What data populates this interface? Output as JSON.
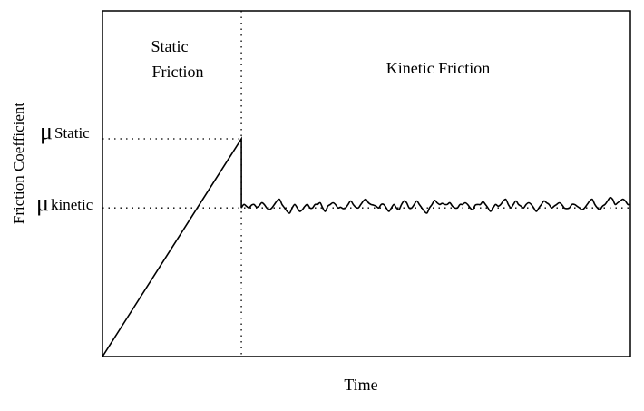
{
  "chart_data": {
    "type": "line",
    "title": "",
    "xlabel": "Time",
    "ylabel": "Friction Coefficient",
    "regions": [
      {
        "label_line1": "Static",
        "label_line2": "Friction"
      },
      {
        "label": "Kinetic Friction"
      }
    ],
    "levels": {
      "static": {
        "symbol": "μ",
        "subscript": "Static",
        "value": 0.63
      },
      "kinetic": {
        "symbol": "μ",
        "subscript": "kinetic",
        "value": 0.43
      }
    },
    "x_range": [
      0,
      1
    ],
    "y_range": [
      0,
      1
    ],
    "transition_x": 0.263,
    "series": [
      {
        "style": "solid",
        "x": [
          0,
          0.263,
          0.263,
          0.263
        ],
        "y": [
          0,
          0.63,
          0.63,
          0.43
        ]
      }
    ],
    "kinetic_fluctuation": {
      "x_start": 0.263,
      "x_end": 1.0,
      "y": [
        0.43,
        0.44,
        0.435,
        0.43,
        0.438,
        0.44,
        0.432,
        0.436,
        0.445,
        0.44,
        0.43,
        0.425,
        0.43,
        0.44,
        0.45,
        0.455,
        0.44,
        0.43,
        0.42,
        0.415,
        0.43,
        0.44,
        0.43,
        0.42,
        0.425,
        0.435,
        0.44,
        0.43,
        0.43,
        0.44,
        0.44,
        0.445,
        0.43,
        0.42,
        0.435,
        0.44,
        0.445,
        0.44,
        0.43,
        0.432,
        0.428,
        0.43,
        0.44,
        0.45,
        0.44,
        0.432,
        0.43,
        0.44,
        0.45,
        0.455,
        0.445,
        0.44,
        0.438,
        0.435,
        0.43,
        0.44,
        0.44,
        0.43,
        0.42,
        0.43,
        0.44,
        0.43,
        0.425,
        0.44,
        0.45,
        0.445,
        0.43,
        0.43,
        0.44,
        0.45,
        0.44,
        0.43,
        0.42,
        0.415,
        0.43,
        0.44,
        0.452,
        0.445,
        0.44,
        0.443,
        0.44,
        0.44,
        0.445,
        0.435,
        0.43,
        0.43,
        0.44,
        0.44,
        0.445,
        0.44,
        0.43,
        0.425,
        0.438,
        0.44,
        0.44,
        0.448,
        0.44,
        0.43,
        0.42,
        0.43,
        0.44,
        0.435,
        0.44,
        0.45,
        0.455,
        0.44,
        0.43,
        0.44,
        0.45,
        0.44,
        0.435,
        0.43,
        0.44,
        0.445,
        0.44,
        0.43,
        0.42,
        0.43,
        0.44,
        0.45,
        0.445,
        0.44,
        0.43,
        0.435,
        0.44,
        0.445,
        0.44,
        0.43,
        0.428,
        0.43,
        0.44,
        0.44,
        0.435,
        0.43,
        0.425,
        0.43,
        0.44,
        0.45,
        0.455,
        0.44,
        0.43,
        0.425,
        0.435,
        0.44,
        0.45,
        0.46,
        0.455,
        0.44,
        0.445,
        0.45,
        0.455,
        0.45,
        0.44,
        0.44
      ]
    },
    "grid": false,
    "legend": "none"
  }
}
